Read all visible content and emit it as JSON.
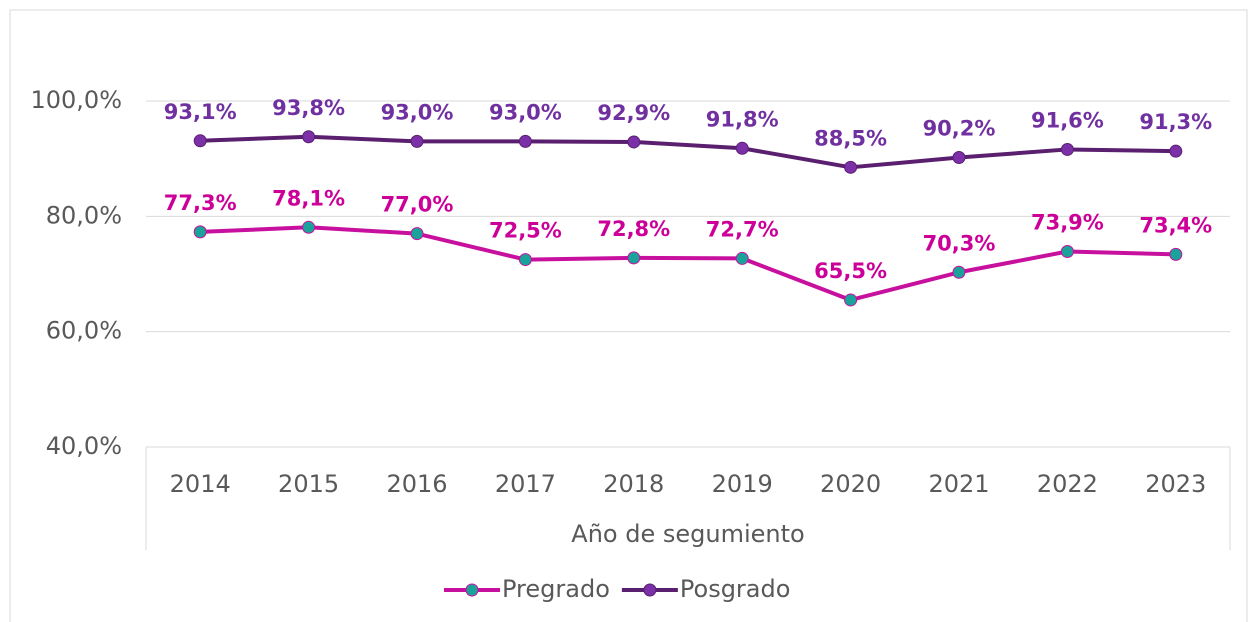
{
  "chart_data": {
    "type": "line",
    "x_label": "Año de segumiento",
    "categories": [
      "2014",
      "2015",
      "2016",
      "2017",
      "2018",
      "2019",
      "2020",
      "2021",
      "2022",
      "2023"
    ],
    "series": [
      {
        "name": "Pregrado",
        "color": "#c8109e",
        "marker_color": "#1aa39a",
        "label_color": "#cc0099",
        "values": [
          77.3,
          78.1,
          77.0,
          72.5,
          72.8,
          72.7,
          65.5,
          70.3,
          73.9,
          73.4
        ],
        "value_labels": [
          "77,3%",
          "78,1%",
          "77,0%",
          "72,5%",
          "72,8%",
          "72,7%",
          "65,5%",
          "70,3%",
          "73,9%",
          "73,4%"
        ]
      },
      {
        "name": "Posgrado",
        "color": "#5b1f70",
        "marker_color": "#7b30a8",
        "label_color": "#7030a0",
        "values": [
          93.1,
          93.8,
          93.0,
          93.0,
          92.9,
          91.8,
          88.5,
          90.2,
          91.6,
          91.3
        ],
        "value_labels": [
          "93,1%",
          "93,8%",
          "93,0%",
          "93,0%",
          "92,9%",
          "91,8%",
          "88,5%",
          "90,2%",
          "91,6%",
          "91,3%"
        ]
      }
    ],
    "ylim": [
      40,
      100
    ],
    "yticks": [
      {
        "value": 40,
        "label": "40,0%"
      },
      {
        "value": 60,
        "label": "60,0%"
      },
      {
        "value": 80,
        "label": "80,0%"
      },
      {
        "value": 100,
        "label": "100,0%"
      }
    ],
    "grid": true,
    "legend": "bottom"
  }
}
